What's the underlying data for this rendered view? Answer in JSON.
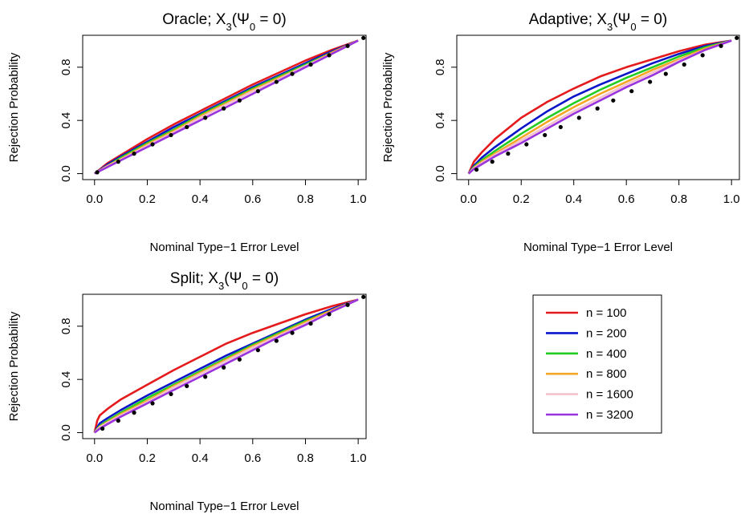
{
  "legend": {
    "entries": [
      "n = 100",
      "n = 200",
      "n = 400",
      "n = 800",
      "n = 1600",
      "n = 3200"
    ],
    "colors": [
      "#e41a1c",
      "#0a14c8",
      "#22cc22",
      "#f5a623",
      "#f4c2cc",
      "#9933dd"
    ],
    "placement": "bottom-right"
  },
  "chart_data": [
    {
      "type": "line",
      "title_prefix": "Oracle; X",
      "title_sub": "3",
      "title_psi": "Ψ",
      "title_psi_sub": "0",
      "title_suffix": " = 0",
      "xlabel": "Nominal Type−1 Error Level",
      "ylabel": "Rejection Probability",
      "xlim": [
        0,
        1
      ],
      "ylim": [
        0,
        1
      ],
      "xticks": [
        "0.0",
        "0.2",
        "0.4",
        "0.6",
        "0.8",
        "1.0"
      ],
      "yticks": [
        "0.0",
        "0.4",
        "0.8"
      ],
      "x": [
        0,
        0.05,
        0.1,
        0.2,
        0.3,
        0.4,
        0.5,
        0.6,
        0.7,
        0.8,
        0.9,
        1.0
      ],
      "series": [
        {
          "name": "n = 100",
          "values": [
            0,
            0.08,
            0.14,
            0.26,
            0.37,
            0.47,
            0.57,
            0.67,
            0.76,
            0.85,
            0.93,
            1.0
          ]
        },
        {
          "name": "n = 200",
          "values": [
            0,
            0.07,
            0.13,
            0.24,
            0.35,
            0.45,
            0.55,
            0.65,
            0.74,
            0.83,
            0.92,
            1.0
          ]
        },
        {
          "name": "n = 400",
          "values": [
            0,
            0.06,
            0.12,
            0.23,
            0.33,
            0.44,
            0.54,
            0.64,
            0.73,
            0.82,
            0.91,
            1.0
          ]
        },
        {
          "name": "n = 800",
          "values": [
            0,
            0.06,
            0.11,
            0.22,
            0.32,
            0.43,
            0.53,
            0.63,
            0.72,
            0.81,
            0.91,
            1.0
          ]
        },
        {
          "name": "n = 1600",
          "values": [
            0,
            0.055,
            0.105,
            0.21,
            0.31,
            0.42,
            0.52,
            0.62,
            0.71,
            0.81,
            0.9,
            1.0
          ]
        },
        {
          "name": "n = 3200",
          "values": [
            0,
            0.05,
            0.1,
            0.2,
            0.3,
            0.4,
            0.5,
            0.6,
            0.7,
            0.8,
            0.9,
            1.0
          ]
        }
      ],
      "reference_points": {
        "x": [
          0.01,
          0.09,
          0.15,
          0.22,
          0.29,
          0.35,
          0.42,
          0.49,
          0.55,
          0.62,
          0.69,
          0.75,
          0.82,
          0.89,
          0.96,
          1.02
        ],
        "y": [
          0.01,
          0.09,
          0.15,
          0.22,
          0.29,
          0.35,
          0.42,
          0.49,
          0.55,
          0.62,
          0.69,
          0.75,
          0.82,
          0.89,
          0.96,
          1.02
        ]
      }
    },
    {
      "type": "line",
      "title_prefix": "Adaptive; X",
      "title_sub": "3",
      "title_psi": "Ψ",
      "title_psi_sub": "0",
      "title_suffix": " = 0",
      "xlabel": "Nominal Type−1 Error Level",
      "ylabel": "Rejection Probability",
      "xlim": [
        0,
        1
      ],
      "ylim": [
        0,
        1
      ],
      "xticks": [
        "0.0",
        "0.2",
        "0.4",
        "0.6",
        "0.8",
        "1.0"
      ],
      "yticks": [
        "0.0",
        "0.4",
        "0.8"
      ],
      "x": [
        0,
        0.02,
        0.05,
        0.1,
        0.2,
        0.3,
        0.4,
        0.5,
        0.6,
        0.7,
        0.8,
        0.9,
        1.0
      ],
      "series": [
        {
          "name": "n = 100",
          "values": [
            0,
            0.09,
            0.16,
            0.26,
            0.42,
            0.54,
            0.64,
            0.73,
            0.8,
            0.86,
            0.92,
            0.97,
            1.0
          ]
        },
        {
          "name": "n = 200",
          "values": [
            0,
            0.06,
            0.12,
            0.2,
            0.34,
            0.47,
            0.58,
            0.67,
            0.75,
            0.83,
            0.9,
            0.96,
            1.0
          ]
        },
        {
          "name": "n = 400",
          "values": [
            0,
            0.05,
            0.1,
            0.17,
            0.3,
            0.42,
            0.53,
            0.63,
            0.72,
            0.8,
            0.88,
            0.95,
            1.0
          ]
        },
        {
          "name": "n = 800",
          "values": [
            0,
            0.045,
            0.09,
            0.15,
            0.27,
            0.39,
            0.5,
            0.6,
            0.69,
            0.78,
            0.86,
            0.94,
            1.0
          ]
        },
        {
          "name": "n = 1600",
          "values": [
            0,
            0.04,
            0.08,
            0.14,
            0.25,
            0.36,
            0.47,
            0.57,
            0.67,
            0.76,
            0.85,
            0.93,
            1.0
          ]
        },
        {
          "name": "n = 3200",
          "values": [
            0,
            0.035,
            0.07,
            0.13,
            0.23,
            0.34,
            0.45,
            0.55,
            0.65,
            0.74,
            0.84,
            0.93,
            1.0
          ]
        }
      ],
      "reference_points": {
        "x": [
          0.03,
          0.09,
          0.15,
          0.22,
          0.29,
          0.35,
          0.42,
          0.49,
          0.55,
          0.62,
          0.69,
          0.75,
          0.82,
          0.89,
          0.96,
          1.02
        ],
        "y": [
          0.03,
          0.09,
          0.15,
          0.22,
          0.29,
          0.35,
          0.42,
          0.49,
          0.55,
          0.62,
          0.69,
          0.75,
          0.82,
          0.89,
          0.96,
          1.02
        ]
      }
    },
    {
      "type": "line",
      "title_prefix": "Split; X",
      "title_sub": "3",
      "title_psi": "Ψ",
      "title_psi_sub": "0",
      "title_suffix": " = 0",
      "xlabel": "Nominal Type−1 Error Level",
      "ylabel": "Rejection Probability",
      "xlim": [
        0,
        1
      ],
      "ylim": [
        0,
        1
      ],
      "xticks": [
        "0.0",
        "0.2",
        "0.4",
        "0.6",
        "0.8",
        "1.0"
      ],
      "yticks": [
        "0.0",
        "0.4",
        "0.8"
      ],
      "x": [
        0,
        0.01,
        0.02,
        0.05,
        0.1,
        0.2,
        0.3,
        0.4,
        0.5,
        0.6,
        0.7,
        0.8,
        0.9,
        1.0
      ],
      "series": [
        {
          "name": "n = 100",
          "values": [
            0,
            0.09,
            0.13,
            0.18,
            0.25,
            0.36,
            0.47,
            0.57,
            0.67,
            0.75,
            0.82,
            0.89,
            0.95,
            1.0
          ]
        },
        {
          "name": "n = 200",
          "values": [
            0,
            0.04,
            0.07,
            0.11,
            0.17,
            0.28,
            0.38,
            0.48,
            0.58,
            0.67,
            0.76,
            0.85,
            0.93,
            1.0
          ]
        },
        {
          "name": "n = 400",
          "values": [
            0,
            0.03,
            0.05,
            0.09,
            0.15,
            0.26,
            0.36,
            0.46,
            0.56,
            0.66,
            0.75,
            0.84,
            0.92,
            1.0
          ]
        },
        {
          "name": "n = 800",
          "values": [
            0,
            0.025,
            0.045,
            0.08,
            0.14,
            0.24,
            0.35,
            0.45,
            0.55,
            0.65,
            0.74,
            0.83,
            0.92,
            1.0
          ]
        },
        {
          "name": "n = 1600",
          "values": [
            0,
            0.02,
            0.04,
            0.075,
            0.13,
            0.23,
            0.34,
            0.44,
            0.54,
            0.64,
            0.73,
            0.82,
            0.91,
            1.0
          ]
        },
        {
          "name": "n = 3200",
          "values": [
            0,
            0.015,
            0.03,
            0.065,
            0.12,
            0.22,
            0.32,
            0.42,
            0.52,
            0.62,
            0.72,
            0.81,
            0.91,
            1.0
          ]
        }
      ],
      "reference_points": {
        "x": [
          0.03,
          0.09,
          0.15,
          0.22,
          0.29,
          0.35,
          0.42,
          0.49,
          0.55,
          0.62,
          0.69,
          0.75,
          0.82,
          0.89,
          0.96,
          1.02
        ],
        "y": [
          0.03,
          0.09,
          0.15,
          0.22,
          0.29,
          0.35,
          0.42,
          0.49,
          0.55,
          0.62,
          0.69,
          0.75,
          0.82,
          0.89,
          0.96,
          1.02
        ]
      }
    }
  ]
}
